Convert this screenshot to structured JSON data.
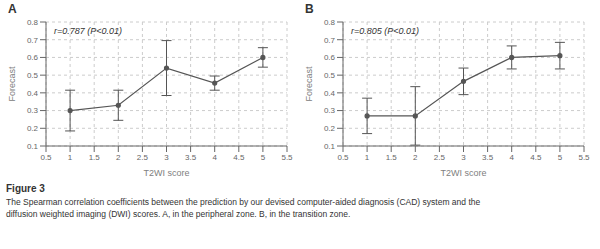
{
  "chart_data": [
    {
      "type": "line",
      "title": "A",
      "annotations": [
        "r=0.787 (P<0.01)"
      ],
      "x": [
        1,
        2,
        3,
        4,
        5
      ],
      "values": [
        0.3,
        0.33,
        0.54,
        0.455,
        0.6
      ],
      "yerr": [
        0.115,
        0.085,
        0.155,
        0.04,
        0.055
      ],
      "color": "#555555",
      "marker": "o",
      "xlabel": "T2WI score",
      "ylabel": "Forecast",
      "xlim": [
        0.5,
        5.5
      ],
      "ylim": [
        0.1,
        0.8
      ],
      "xticks": [
        0.5,
        1,
        1.5,
        2,
        2.5,
        3,
        3.5,
        4,
        4.5,
        5,
        5.5
      ],
      "yticks": [
        0.1,
        0.2,
        0.3,
        0.4,
        0.5,
        0.6,
        0.7,
        0.8
      ],
      "grid": true
    },
    {
      "type": "line",
      "title": "B",
      "annotations": [
        "r=0.805 (P<0.01)"
      ],
      "x": [
        1,
        2,
        3,
        4,
        5
      ],
      "values": [
        0.27,
        0.27,
        0.465,
        0.6,
        0.61
      ],
      "yerr": [
        0.1,
        0.165,
        0.075,
        0.065,
        0.075
      ],
      "color": "#555555",
      "marker": "o",
      "xlabel": "T2WI score",
      "ylabel": "Forecast",
      "xlim": [
        0.5,
        5.5
      ],
      "ylim": [
        0.1,
        0.8
      ],
      "xticks": [
        0.5,
        1,
        1.5,
        2,
        2.5,
        3,
        3.5,
        4,
        4.5,
        5,
        5.5
      ],
      "yticks": [
        0.1,
        0.2,
        0.3,
        0.4,
        0.5,
        0.6,
        0.7,
        0.8
      ],
      "grid": true
    }
  ],
  "annotations": [
    "Figure 3",
    "The Spearman correlation coefficients between the prediction by our devised computer-aided diagnosis (CAD) system and the",
    "diffusion weighted imaging (DWI) scores. A, in the peripheral zone. B, in the transition zone."
  ]
}
